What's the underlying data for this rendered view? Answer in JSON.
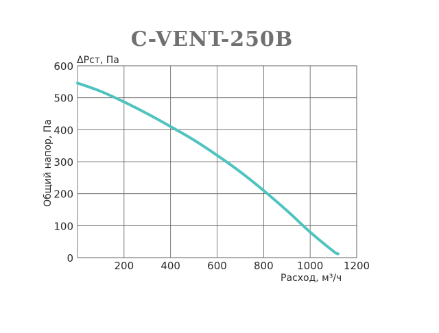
{
  "chart_data": {
    "type": "line",
    "title": "C-VENT-250B",
    "xlabel": "Расход, м³/ч",
    "ylabel": "Общий напор, Па",
    "y_unit_label": "ΔPст, Па",
    "xlim": [
      0,
      1200
    ],
    "ylim": [
      0,
      600
    ],
    "x_ticks": [
      "200",
      "400",
      "600",
      "800",
      "1000",
      "1200"
    ],
    "x_tick_values": [
      200,
      400,
      600,
      800,
      1000,
      1200
    ],
    "y_ticks": [
      "0",
      "100",
      "200",
      "300",
      "400",
      "500",
      "600"
    ],
    "y_tick_values": [
      0,
      100,
      200,
      300,
      400,
      500,
      600
    ],
    "grid": true,
    "series": [
      {
        "color": "#4ec3bf",
        "x": [
          0,
          100,
          200,
          300,
          400,
          500,
          600,
          700,
          800,
          900,
          1000,
          1100,
          1120
        ],
        "y": [
          546,
          520,
          487,
          450,
          410,
          368,
          320,
          268,
          210,
          147,
          80,
          20,
          12
        ]
      }
    ]
  }
}
